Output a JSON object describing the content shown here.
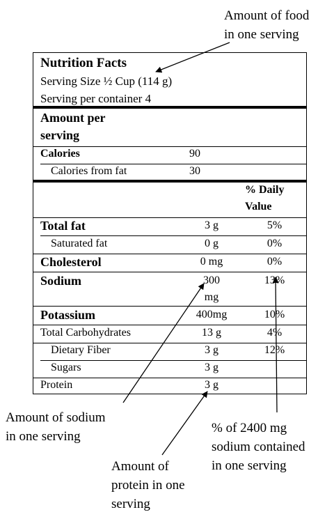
{
  "label": {
    "title": "Nutrition Facts",
    "serving_size": "Serving Size  ½ Cup (114 g)",
    "servings_per_container": "Serving per container   4",
    "amount_per_serving": "Amount per",
    "amount_per_serving_2": "serving",
    "calories_label": "Calories",
    "calories_value": "90",
    "calories_fat_label": "Calories from fat",
    "calories_fat_value": "30",
    "daily_value_header": "% Daily",
    "daily_value_header_2": "Value",
    "nutrients": [
      {
        "name": "Total fat",
        "amount": "3 g",
        "dv": "5%"
      },
      {
        "name": "Saturated fat",
        "amount": "0 g",
        "dv": "0%"
      },
      {
        "name": "Cholesterol",
        "amount": "0 mg",
        "dv": "0%"
      },
      {
        "name": "Sodium",
        "amount": "300",
        "amount_2": "mg",
        "dv": "13%"
      },
      {
        "name": "Potassium",
        "amount": "400mg",
        "dv": "10%"
      },
      {
        "name": "Total Carbohydrates",
        "amount": "13 g",
        "dv": "4%"
      },
      {
        "name": "Dietary Fiber",
        "amount": "3 g",
        "dv": "12%"
      },
      {
        "name": "Sugars",
        "amount": "3 g",
        "dv": ""
      },
      {
        "name": "Protein",
        "amount": "3 g",
        "dv": ""
      }
    ]
  },
  "annotations": {
    "food": [
      "Amount of food",
      "in one serving"
    ],
    "sodium_amount": [
      "Amount of sodium",
      "in one serving"
    ],
    "sodium_pct": [
      "% of 2400 mg",
      "sodium contained",
      "in one serving"
    ],
    "protein": [
      "Amount of",
      "protein in one",
      "serving"
    ]
  }
}
